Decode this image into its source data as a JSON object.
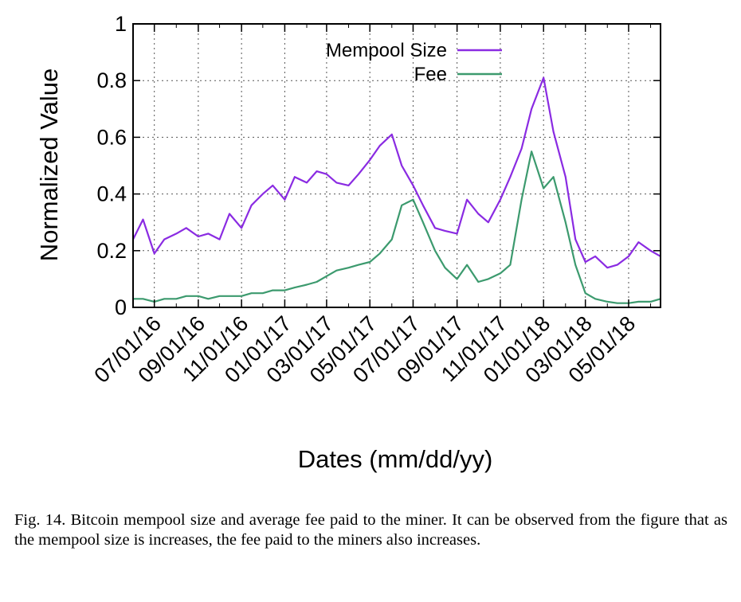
{
  "chart_data": {
    "type": "line",
    "title": "",
    "xlabel": "Dates (mm/dd/yy)",
    "ylabel": "Normalized Value",
    "x_range": [
      "2016-06-01",
      "2018-06-15"
    ],
    "ylim": [
      0,
      1
    ],
    "y_ticks": [
      0,
      0.2,
      0.4,
      0.6,
      0.8,
      1
    ],
    "y_tick_labels": [
      "0",
      "0.2",
      "0.4",
      "0.6",
      "0.8",
      "1"
    ],
    "x_ticks": [
      "2016-07-01",
      "2016-09-01",
      "2016-11-01",
      "2017-01-01",
      "2017-03-01",
      "2017-05-01",
      "2017-07-01",
      "2017-09-01",
      "2017-11-01",
      "2018-01-01",
      "2018-03-01",
      "2018-05-01"
    ],
    "x_tick_labels": [
      "07/01/16",
      "09/01/16",
      "11/01/16",
      "01/01/17",
      "03/01/17",
      "05/01/17",
      "07/01/17",
      "09/01/17",
      "11/01/17",
      "01/01/18",
      "03/01/18",
      "05/01/18"
    ],
    "grid": true,
    "legend_position": "top-right",
    "series": [
      {
        "name": "Mempool Size",
        "color": "#8a2be2",
        "x": [
          "2016-06-01",
          "2016-06-15",
          "2016-07-01",
          "2016-07-15",
          "2016-08-01",
          "2016-08-15",
          "2016-09-01",
          "2016-09-15",
          "2016-10-01",
          "2016-10-15",
          "2016-11-01",
          "2016-11-15",
          "2016-12-01",
          "2016-12-15",
          "2017-01-01",
          "2017-01-15",
          "2017-02-01",
          "2017-02-15",
          "2017-03-01",
          "2017-03-15",
          "2017-04-01",
          "2017-04-15",
          "2017-05-01",
          "2017-05-15",
          "2017-06-01",
          "2017-06-15",
          "2017-07-01",
          "2017-07-15",
          "2017-08-01",
          "2017-08-15",
          "2017-09-01",
          "2017-09-15",
          "2017-10-01",
          "2017-10-15",
          "2017-11-01",
          "2017-11-15",
          "2017-12-01",
          "2017-12-15",
          "2018-01-01",
          "2018-01-15",
          "2018-02-01",
          "2018-02-15",
          "2018-03-01",
          "2018-03-15",
          "2018-04-01",
          "2018-04-15",
          "2018-05-01",
          "2018-05-15",
          "2018-06-01",
          "2018-06-15"
        ],
        "values": [
          0.24,
          0.31,
          0.19,
          0.24,
          0.26,
          0.28,
          0.25,
          0.26,
          0.24,
          0.33,
          0.28,
          0.36,
          0.4,
          0.43,
          0.38,
          0.46,
          0.44,
          0.48,
          0.47,
          0.44,
          0.43,
          0.47,
          0.52,
          0.57,
          0.61,
          0.5,
          0.43,
          0.36,
          0.28,
          0.27,
          0.26,
          0.38,
          0.33,
          0.3,
          0.38,
          0.46,
          0.56,
          0.7,
          0.81,
          0.62,
          0.46,
          0.24,
          0.16,
          0.18,
          0.14,
          0.15,
          0.18,
          0.23,
          0.2,
          0.18
        ]
      },
      {
        "name": "Fee",
        "color": "#3c9a6e",
        "x": [
          "2016-06-01",
          "2016-06-15",
          "2016-07-01",
          "2016-07-15",
          "2016-08-01",
          "2016-08-15",
          "2016-09-01",
          "2016-09-15",
          "2016-10-01",
          "2016-10-15",
          "2016-11-01",
          "2016-11-15",
          "2016-12-01",
          "2016-12-15",
          "2017-01-01",
          "2017-01-15",
          "2017-02-01",
          "2017-02-15",
          "2017-03-01",
          "2017-03-15",
          "2017-04-01",
          "2017-04-15",
          "2017-05-01",
          "2017-05-15",
          "2017-06-01",
          "2017-06-15",
          "2017-07-01",
          "2017-07-15",
          "2017-08-01",
          "2017-08-15",
          "2017-09-01",
          "2017-09-15",
          "2017-10-01",
          "2017-10-15",
          "2017-11-01",
          "2017-11-15",
          "2017-12-01",
          "2017-12-15",
          "2018-01-01",
          "2018-01-15",
          "2018-02-01",
          "2018-02-15",
          "2018-03-01",
          "2018-03-15",
          "2018-04-01",
          "2018-04-15",
          "2018-05-01",
          "2018-05-15",
          "2018-06-01",
          "2018-06-15"
        ],
        "values": [
          0.03,
          0.03,
          0.02,
          0.03,
          0.03,
          0.04,
          0.04,
          0.03,
          0.04,
          0.04,
          0.04,
          0.05,
          0.05,
          0.06,
          0.06,
          0.07,
          0.08,
          0.09,
          0.11,
          0.13,
          0.14,
          0.15,
          0.16,
          0.19,
          0.24,
          0.36,
          0.38,
          0.3,
          0.2,
          0.14,
          0.1,
          0.15,
          0.09,
          0.1,
          0.12,
          0.15,
          0.38,
          0.55,
          0.42,
          0.46,
          0.3,
          0.15,
          0.05,
          0.03,
          0.02,
          0.015,
          0.015,
          0.02,
          0.02,
          0.03
        ]
      }
    ]
  },
  "caption": "Fig. 14.  Bitcoin mempool size and average fee paid to the miner. It can be observed from the figure that as the mempool size is increases, the fee paid to the miners also increases."
}
